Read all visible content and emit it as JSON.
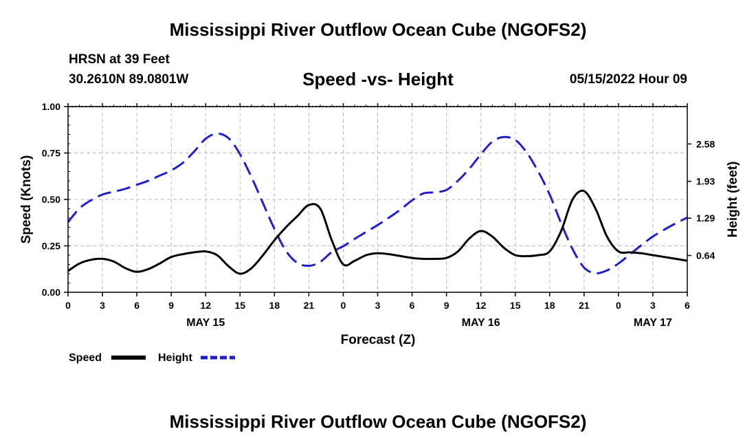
{
  "header": {
    "title": "Mississippi River Outflow Ocean Cube (NGOFS2)",
    "station": "HRSN at 39 Feet",
    "coords": "30.2610N  89.0801W",
    "subtitle": "Speed -vs- Height",
    "datetime": "05/15/2022 Hour 09",
    "footer_title": "Mississippi River Outflow Ocean Cube (NGOFS2)"
  },
  "chart_data": {
    "type": "line",
    "title": "Speed -vs- Height",
    "xlabel": "Forecast (Z)",
    "ylabel": "Speed (Knots)",
    "y2label": "Height (feet)",
    "xlim": [
      0,
      54
    ],
    "ylim": [
      0,
      1.0
    ],
    "y2lim": [
      0,
      3.23
    ],
    "x_tick_labels": [
      "0",
      "3",
      "6",
      "9",
      "12",
      "15",
      "18",
      "21",
      "0",
      "3",
      "6",
      "9",
      "12",
      "15",
      "18",
      "21",
      "0",
      "3",
      "6"
    ],
    "x_ticks": [
      0,
      3,
      6,
      9,
      12,
      15,
      18,
      21,
      24,
      27,
      30,
      33,
      36,
      39,
      42,
      45,
      48,
      51,
      54
    ],
    "date_labels": [
      {
        "label": "MAY 15",
        "x": 12
      },
      {
        "label": "MAY 16",
        "x": 36
      },
      {
        "label": "MAY 17",
        "x": 51
      }
    ],
    "y_ticks": [
      0.0,
      0.25,
      0.5,
      0.75,
      1.0
    ],
    "y_tick_labels": [
      "0.00",
      "0.25",
      "0.50",
      "0.75",
      "1.00"
    ],
    "y2_ticks": [
      0.64,
      1.29,
      1.93,
      2.58
    ],
    "y2_tick_labels": [
      "0.64",
      "1.29",
      "1.93",
      "2.58"
    ],
    "legend": [
      {
        "name": "Speed",
        "color": "#000000",
        "style": "solid"
      },
      {
        "name": "Height",
        "color": "#1f1fcf",
        "style": "dashed"
      }
    ],
    "series": [
      {
        "name": "Speed",
        "axis": "left",
        "color": "#000000",
        "x": [
          0,
          1,
          2,
          3,
          4,
          5,
          6,
          7,
          8,
          9,
          10,
          11,
          12,
          13,
          14,
          15,
          16,
          17,
          18,
          19,
          20,
          21,
          22,
          23,
          24,
          25,
          26,
          27,
          28,
          29,
          30,
          31,
          32,
          33,
          34,
          35,
          36,
          37,
          38,
          39,
          40,
          41,
          42,
          43,
          44,
          45,
          46,
          47,
          48,
          49,
          50,
          51,
          52,
          53,
          54
        ],
        "values": [
          0.115,
          0.155,
          0.175,
          0.18,
          0.165,
          0.13,
          0.11,
          0.125,
          0.155,
          0.19,
          0.205,
          0.215,
          0.22,
          0.2,
          0.14,
          0.1,
          0.13,
          0.2,
          0.28,
          0.35,
          0.41,
          0.47,
          0.45,
          0.28,
          0.15,
          0.17,
          0.2,
          0.21,
          0.205,
          0.195,
          0.185,
          0.18,
          0.18,
          0.185,
          0.22,
          0.29,
          0.33,
          0.3,
          0.24,
          0.2,
          0.195,
          0.2,
          0.22,
          0.33,
          0.5,
          0.545,
          0.45,
          0.3,
          0.22,
          0.215,
          0.21,
          0.2,
          0.19,
          0.18,
          0.17
        ]
      },
      {
        "name": "Height",
        "axis": "right",
        "color": "#1f1fcf",
        "x": [
          0,
          1,
          2,
          3,
          4,
          5,
          6,
          7,
          8,
          9,
          10,
          11,
          12,
          13,
          14,
          15,
          16,
          17,
          18,
          19,
          20,
          21,
          22,
          23,
          24,
          25,
          26,
          27,
          28,
          29,
          30,
          31,
          32,
          33,
          34,
          35,
          36,
          37,
          38,
          39,
          40,
          41,
          42,
          43,
          44,
          45,
          46,
          47,
          48,
          49,
          50,
          51,
          52,
          53,
          54
        ],
        "values": [
          1.22,
          1.46,
          1.6,
          1.7,
          1.75,
          1.8,
          1.87,
          1.94,
          2.03,
          2.12,
          2.25,
          2.45,
          2.67,
          2.76,
          2.68,
          2.4,
          2.0,
          1.55,
          1.1,
          0.72,
          0.51,
          0.46,
          0.53,
          0.7,
          0.8,
          0.93,
          1.05,
          1.17,
          1.3,
          1.44,
          1.6,
          1.72,
          1.74,
          1.78,
          1.94,
          2.15,
          2.4,
          2.62,
          2.7,
          2.65,
          2.43,
          2.1,
          1.7,
          1.2,
          0.75,
          0.43,
          0.33,
          0.38,
          0.5,
          0.66,
          0.82,
          0.97,
          1.09,
          1.2,
          1.3
        ]
      }
    ]
  }
}
